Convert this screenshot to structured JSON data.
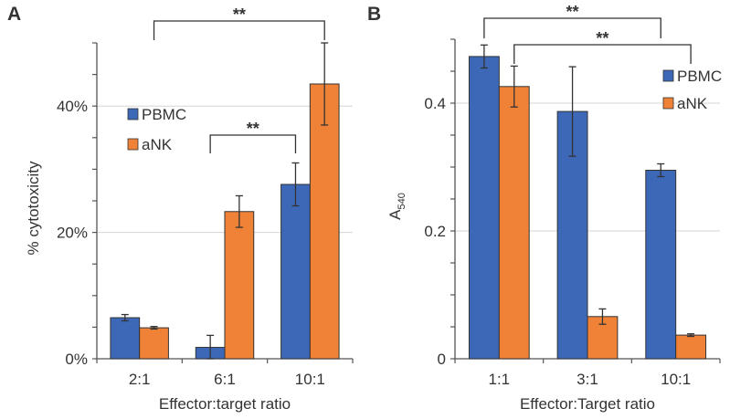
{
  "chart_data": [
    {
      "panel_label": "A",
      "type": "bar",
      "categories": [
        "2:1",
        "6:1",
        "10:1"
      ],
      "series": [
        {
          "name": "PBMC",
          "color": "#3d68b8",
          "values": [
            6.5,
            1.8,
            27.6
          ],
          "errors": [
            0.5,
            1.9,
            3.4
          ]
        },
        {
          "name": "aNK",
          "color": "#ef8236",
          "values": [
            4.9,
            23.3,
            43.5
          ],
          "errors": [
            0.2,
            2.5,
            6.5
          ]
        }
      ],
      "xlabel": "Effector:target ratio",
      "ylabel": "% cytotoxicity",
      "ylim": [
        0,
        50
      ],
      "yticks": [
        0,
        20,
        40
      ],
      "ytick_labels": [
        "0%",
        "20%",
        "40%"
      ],
      "minor_tick_step": 5,
      "grid": true,
      "legend_position": "middle-left",
      "annotations": [
        {
          "text": "**",
          "from": {
            "category": 0,
            "series": 1
          },
          "to": {
            "category": 2,
            "series": 1
          },
          "level": 0
        },
        {
          "text": "**",
          "from": {
            "category": 1,
            "series": 0
          },
          "to": {
            "category": 2,
            "series": 0
          },
          "level": 1
        }
      ]
    },
    {
      "panel_label": "B",
      "type": "bar",
      "categories": [
        "1:1",
        "3:1",
        "10:1"
      ],
      "series": [
        {
          "name": "PBMC",
          "color": "#3d68b8",
          "values": [
            0.473,
            0.387,
            0.295
          ],
          "errors": [
            0.018,
            0.07,
            0.01
          ]
        },
        {
          "name": "aNK",
          "color": "#ef8236",
          "values": [
            0.426,
            0.066,
            0.037
          ],
          "errors": [
            0.032,
            0.012,
            0.002
          ]
        }
      ],
      "xlabel": "Effector:Target ratio",
      "ylabel": "A",
      "ylabel_subscript": "540",
      "ylim": [
        0,
        0.5
      ],
      "yticks": [
        0,
        0.2,
        0.4
      ],
      "ytick_labels": [
        "0",
        "0.2",
        "0.4"
      ],
      "minor_tick_step": 0.05,
      "grid": true,
      "legend_position": "top-right",
      "annotations": [
        {
          "text": "**",
          "from": {
            "category": 0,
            "series": 0
          },
          "to": {
            "category": 2,
            "series": 0
          },
          "level": 0
        },
        {
          "text": "**",
          "from": {
            "category": 0,
            "series": 1
          },
          "to": {
            "category": 2,
            "series": 1
          },
          "level": 1
        }
      ]
    }
  ]
}
